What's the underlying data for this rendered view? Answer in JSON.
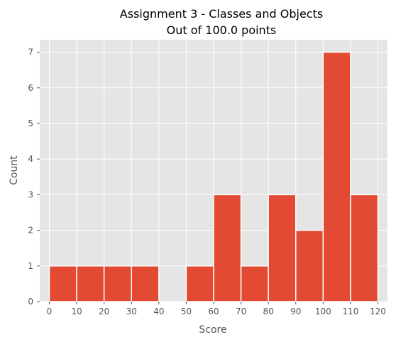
{
  "chart_data": {
    "type": "bar",
    "title": "Assignment 3 - Classes and Objects",
    "subtitle": "Out of 100.0 points",
    "xlabel": "Score",
    "ylabel": "Count",
    "bin_edges": [
      0,
      10,
      20,
      30,
      40,
      50,
      60,
      70,
      80,
      90,
      100,
      110,
      120
    ],
    "values": [
      1,
      1,
      1,
      1,
      0,
      1,
      3,
      1,
      3,
      2,
      7,
      3
    ],
    "x_ticks": [
      0,
      10,
      20,
      30,
      40,
      50,
      60,
      70,
      80,
      90,
      100,
      110,
      120
    ],
    "y_ticks": [
      0,
      1,
      2,
      3,
      4,
      5,
      6,
      7
    ],
    "xlim": [
      -3.5,
      123.5
    ],
    "ylim": [
      0,
      7.35
    ],
    "grid": true,
    "colors": {
      "bar": "#E24A33",
      "background": "#E5E5E5",
      "grid": "#FFFFFF"
    }
  }
}
